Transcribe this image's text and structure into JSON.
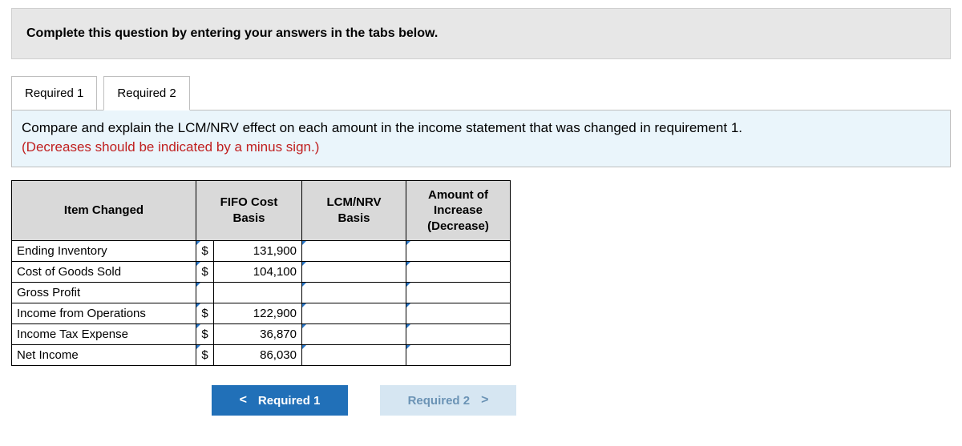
{
  "banner": {
    "text": "Complete this question by entering your answers in the tabs below."
  },
  "tabs": [
    {
      "label": "Required 1",
      "active": false
    },
    {
      "label": "Required 2",
      "active": true
    }
  ],
  "instruction": {
    "line1": "Compare and explain the LCM/NRV effect on each amount in the income statement that was changed in requirement 1.",
    "line2_red": "(Decreases should be indicated by a minus sign.)"
  },
  "table": {
    "headers": {
      "item": "Item Changed",
      "fifo": "FIFO Cost Basis",
      "lcm": "LCM/NRV Basis",
      "amt": "Amount of Increase (Decrease)"
    },
    "rows": [
      {
        "label": "Ending Inventory",
        "cur": "$",
        "value": "131,900"
      },
      {
        "label": "Cost of Goods Sold",
        "cur": "$",
        "value": "104,100"
      },
      {
        "label": "Gross Profit",
        "cur": "",
        "value": ""
      },
      {
        "label": "Income from Operations",
        "cur": "$",
        "value": "122,900"
      },
      {
        "label": "Income Tax Expense",
        "cur": "$",
        "value": "36,870"
      },
      {
        "label": "Net Income",
        "cur": "$",
        "value": "86,030"
      }
    ]
  },
  "nav": {
    "prev_label": "Required 1",
    "next_label": "Required 2",
    "chev_left": "<",
    "chev_right": ">"
  },
  "colors": {
    "banner_bg": "#e7e7e7",
    "instruction_bg": "#eaf5fb",
    "header_bg": "#d9d9d9",
    "flag": "#2a77c7",
    "prev_btn_bg": "#2170b8",
    "next_btn_bg": "#d6e6f2",
    "next_btn_fg": "#6b93b5",
    "red": "#c02020"
  }
}
